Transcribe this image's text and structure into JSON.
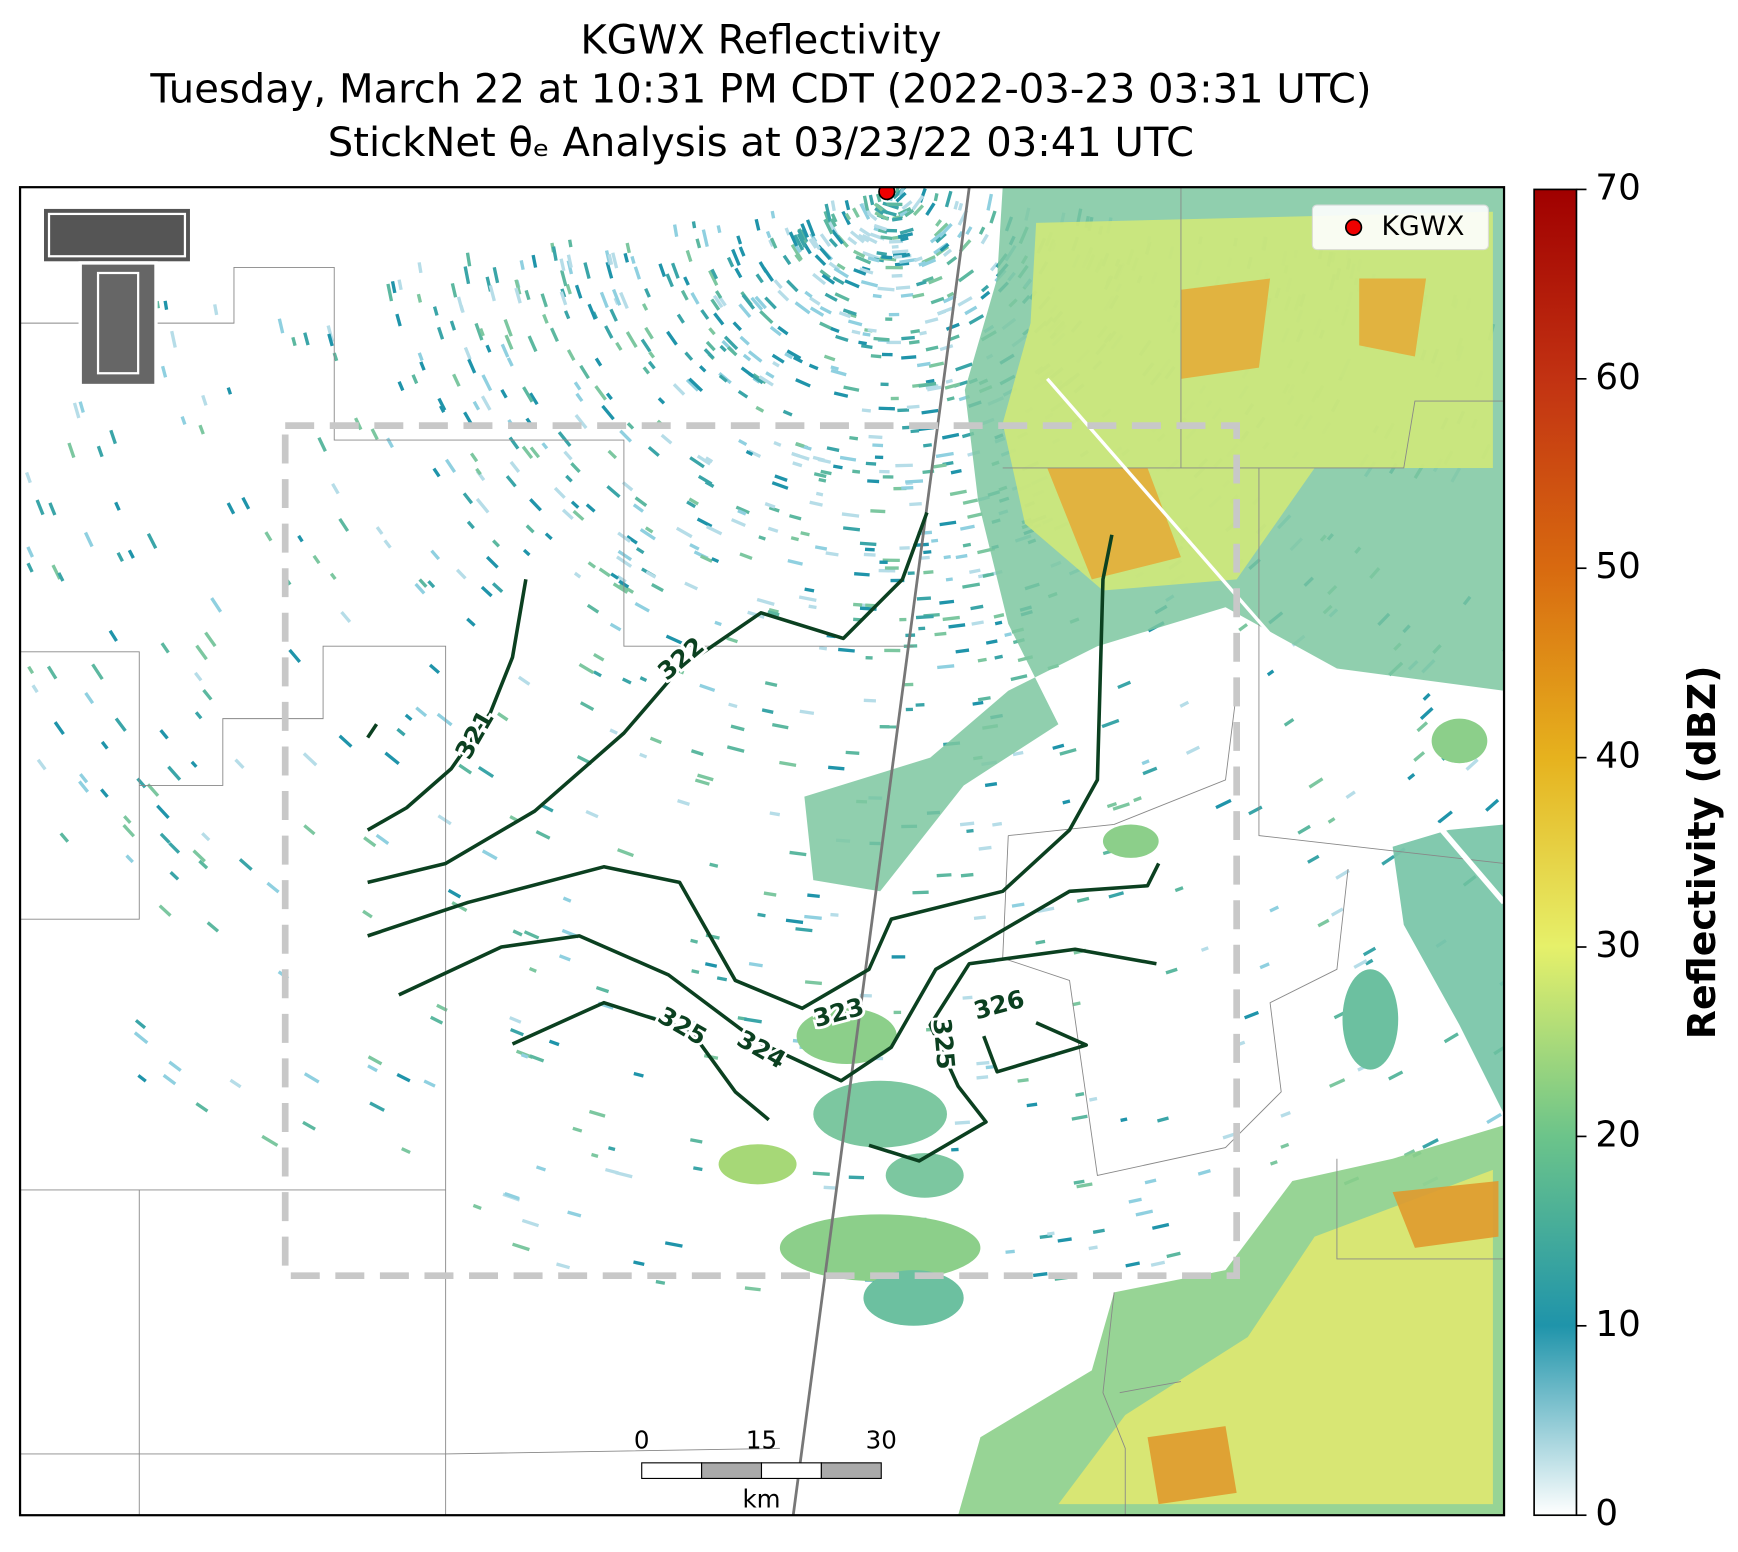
{
  "title": {
    "lines": [
      "KGWX Reflectivity",
      "Tuesday, March 22 at 10:31 PM CDT (2022-03-23 03:31 UTC)",
      "StickNet θₑ Analysis at 03/23/22 03:41 UTC"
    ]
  },
  "legend": {
    "label": "KGWX"
  },
  "contours": {
    "labels": [
      321,
      322,
      323,
      324,
      325,
      325,
      326
    ]
  },
  "scale_bar": {
    "ticks": [
      0,
      15,
      30
    ],
    "unit": "km"
  },
  "colorbar": {
    "label": "Reflectivity (dBZ)",
    "ylim": [
      0,
      70
    ],
    "yticks": [
      0,
      10,
      20,
      30,
      40,
      50,
      60,
      70
    ]
  }
}
